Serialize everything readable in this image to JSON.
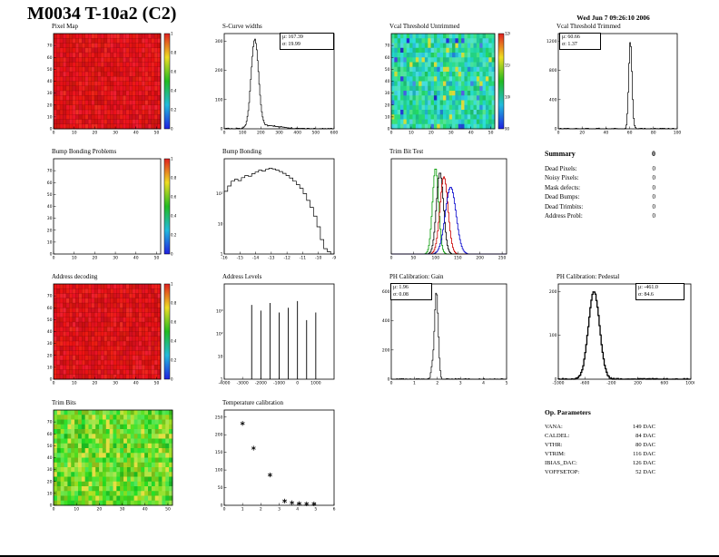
{
  "page": {
    "title": "M0034 T-10a2 (C2)",
    "datetime": "Wed Jun  7 09:26:10 2006"
  },
  "panels": {
    "pixel_map": {
      "title": "Pixel Map"
    },
    "scurve_widths": {
      "title": "S-Curve widths",
      "stats": {
        "mu": "μ: 167.39",
        "sigma": "σ: 19.99"
      }
    },
    "vcal_untrimmed": {
      "title": "Vcal Threshold Untrimmed"
    },
    "vcal_trimmed": {
      "title": "Vcal Threshold Trimmed",
      "stats": {
        "mu": "μ: 60.66",
        "sigma": "σ: 1.37"
      }
    },
    "bump_problems": {
      "title": "Bump Bonding Problems"
    },
    "bump_bonding": {
      "title": "Bump Bonding"
    },
    "trim_bit_test": {
      "title": "Trim Bit Test"
    },
    "address_decoding": {
      "title": "Address decoding"
    },
    "address_levels": {
      "title": "Address Levels"
    },
    "ph_gain": {
      "title": "PH Calibration: Gain",
      "stats": {
        "mu": "μ: 1.96",
        "sigma": "σ: 0.08"
      }
    },
    "ph_pedestal": {
      "title": "PH Calibration: Pedestal",
      "stats": {
        "mu": "μ: -461.0",
        "sigma": "σ: 84.6"
      }
    },
    "trim_bits": {
      "title": "Trim Bits"
    },
    "temperature": {
      "title": "Temperature calibration"
    }
  },
  "summary": {
    "title": "Summary",
    "total": "0",
    "rows": [
      {
        "label": "Dead Pixels:",
        "value": "0"
      },
      {
        "label": "Noisy Pixels:",
        "value": "0"
      },
      {
        "label": "Mask defects:",
        "value": "0"
      },
      {
        "label": "Dead Bumps:",
        "value": "0"
      },
      {
        "label": "Dead Trimbits:",
        "value": "0"
      },
      {
        "label": "Address Probl:",
        "value": "0"
      }
    ]
  },
  "op_parameters": {
    "title": "Op. Parameters",
    "rows": [
      {
        "label": "VANA:",
        "value": "149 DAC"
      },
      {
        "label": "CALDEL:",
        "value": "84 DAC"
      },
      {
        "label": "VTHR:",
        "value": "80 DAC"
      },
      {
        "label": "VTRIM:",
        "value": "116 DAC"
      },
      {
        "label": "IBIAS_DAC:",
        "value": "126 DAC"
      },
      {
        "label": "VOFFSETOP:",
        "value": "52 DAC"
      }
    ]
  },
  "colors": {
    "map_red": "#e32219",
    "palette_top": "#e02020",
    "palette_bottom": "#2020e0"
  },
  "chart_data": [
    {
      "id": "pixel_map",
      "type": "heatmap",
      "style": "red",
      "colorbar": true,
      "title": "Pixel Map",
      "xlim": [
        0,
        52
      ],
      "ylim": [
        0,
        80
      ],
      "xticks": [
        0,
        10,
        20,
        30,
        40,
        50
      ],
      "yticks": [
        0,
        10,
        20,
        30,
        40,
        50,
        60,
        70
      ],
      "zticks": [
        "0",
        "0.2",
        "0.4",
        "0.6",
        "0.8",
        "1"
      ],
      "uniform_value": 1
    },
    {
      "id": "scurve_widths",
      "type": "histogram",
      "title": "S-Curve widths",
      "mu": 167.39,
      "sigma": 19.99,
      "xlim": [
        0,
        600
      ],
      "xticks": [
        0,
        100,
        200,
        300,
        400,
        500,
        600
      ],
      "ycount_max": 300,
      "yticks": [
        0,
        100,
        200,
        300
      ],
      "components": [
        {
          "mu": 167.39,
          "sigma": 19.99,
          "amp": 1
        },
        {
          "mu": 240,
          "sigma": 70,
          "amp": 0.035
        }
      ]
    },
    {
      "id": "vcal_untrimmed",
      "type": "heatmap",
      "style": "teal",
      "colorbar": true,
      "title": "Vcal Threshold Untrimmed",
      "xlim": [
        0,
        52
      ],
      "ylim": [
        0,
        80
      ],
      "xticks": [
        0,
        10,
        20,
        30,
        40,
        50
      ],
      "yticks": [
        0,
        10,
        20,
        30,
        40,
        50,
        60,
        70
      ],
      "zticks": [
        "90",
        "100",
        "110",
        "120"
      ],
      "value_range": [
        90,
        130
      ]
    },
    {
      "id": "vcal_trimmed",
      "type": "histogram",
      "title": "Vcal Threshold Trimmed",
      "mu": 60.66,
      "sigma": 1.37,
      "xlim": [
        0,
        100
      ],
      "xticks": [
        0,
        20,
        40,
        60,
        80,
        100
      ],
      "ycount_max": 1200,
      "yticks": [
        0,
        400,
        800,
        1200
      ],
      "components": [
        {
          "mu": 60.66,
          "sigma": 1.37,
          "amp": 1
        }
      ]
    },
    {
      "id": "bump_problems",
      "type": "heatmap",
      "style": "white",
      "colorbar": true,
      "title": "Bump Bonding Problems",
      "xlim": [
        0,
        52
      ],
      "ylim": [
        0,
        80
      ],
      "xticks": [
        0,
        10,
        20,
        30,
        40,
        50
      ],
      "yticks": [
        0,
        10,
        20,
        30,
        40,
        50,
        60,
        70
      ],
      "zticks": [
        "0",
        "0.2",
        "0.4",
        "0.6",
        "0.8",
        "1"
      ],
      "uniform_value": 0
    },
    {
      "id": "bump_bonding",
      "type": "hist_bins",
      "title": "Bump Bonding",
      "log": true,
      "log_decades": 3,
      "xlim": [
        -16,
        -9
      ],
      "xticks": [
        -16,
        -15,
        -14,
        -13,
        -12,
        -11,
        -10,
        -9
      ],
      "log_yticks": [
        "1",
        "10",
        "10²"
      ],
      "values": [
        120,
        180,
        260,
        300,
        270,
        340,
        400,
        380,
        460,
        520,
        600,
        560,
        640,
        700,
        660,
        600,
        540,
        470,
        400,
        330,
        260,
        200,
        150,
        100,
        60,
        35,
        18,
        8,
        3,
        1.5,
        1.2,
        1
      ]
    },
    {
      "id": "trim_bit_test",
      "type": "multi_hist",
      "title": "Trim Bit Test",
      "xlim": [
        0,
        260
      ],
      "xticks": [
        0,
        50,
        100,
        150,
        200,
        250
      ],
      "series": [
        {
          "color": "#009900",
          "mu": 100,
          "sigma": 7,
          "amp": 1.0
        },
        {
          "color": "#000000",
          "mu": 110,
          "sigma": 8,
          "amp": 0.95
        },
        {
          "color": "#cc0000",
          "mu": 119,
          "sigma": 9,
          "amp": 0.9
        },
        {
          "color": "#0000cc",
          "mu": 134,
          "sigma": 12,
          "amp": 0.78
        }
      ]
    },
    {
      "id": "address_decoding",
      "type": "heatmap",
      "style": "red",
      "colorbar": true,
      "title": "Address decoding",
      "xlim": [
        0,
        52
      ],
      "ylim": [
        0,
        80
      ],
      "xticks": [
        0,
        10,
        20,
        30,
        40,
        50
      ],
      "yticks": [
        0,
        10,
        20,
        30,
        40,
        50,
        60,
        70
      ],
      "zticks": [
        "0",
        "0.2",
        "0.4",
        "0.6",
        "0.8",
        "1"
      ],
      "uniform_value": 1
    },
    {
      "id": "address_levels",
      "type": "spikes",
      "title": "Address Levels",
      "log": true,
      "log_decades": 4,
      "log_yticks": [
        "1",
        "10",
        "10²",
        "10³"
      ],
      "xlim": [
        -4000,
        2000
      ],
      "xticks": [
        -4000,
        -3000,
        -2000,
        -1000,
        0,
        1000
      ],
      "spikes": [
        {
          "x": -2500,
          "h": 0.78
        },
        {
          "x": -2000,
          "h": 0.72
        },
        {
          "x": -1500,
          "h": 0.8
        },
        {
          "x": -1000,
          "h": 0.7
        },
        {
          "x": -500,
          "h": 0.75
        },
        {
          "x": 0,
          "h": 0.82
        },
        {
          "x": 500,
          "h": 0.62
        },
        {
          "x": 1000,
          "h": 0.7
        }
      ]
    },
    {
      "id": "ph_gain",
      "type": "histogram",
      "title": "PH Calibration: Gain",
      "mu": 1.96,
      "sigma": 0.08,
      "xlim": [
        0,
        5
      ],
      "xticks": [
        0,
        1,
        2,
        3,
        4,
        5
      ],
      "ycount_max": 600,
      "yticks": [
        0,
        200,
        400,
        600
      ],
      "components": [
        {
          "mu": 1.96,
          "sigma": 0.08,
          "amp": 1
        },
        {
          "mu": 1.78,
          "sigma": 0.06,
          "amp": 0.12
        }
      ]
    },
    {
      "id": "ph_pedestal",
      "type": "histogram",
      "title": "PH Calibration: Pedestal",
      "mu": -461.0,
      "sigma": 84.6,
      "lw": 1.3,
      "xlim": [
        -1000,
        1000
      ],
      "xticks": [
        -1000,
        -600,
        -200,
        200,
        600,
        1000
      ],
      "ycount_max": 200,
      "yticks": [
        0,
        100,
        200
      ],
      "components": [
        {
          "mu": -461,
          "sigma": 84.6,
          "amp": 1
        }
      ]
    },
    {
      "id": "trim_bits",
      "type": "heatmap",
      "style": "green",
      "colorbar": false,
      "title": "Trim Bits",
      "xlim": [
        0,
        52
      ],
      "ylim": [
        0,
        80
      ],
      "xticks": [
        0,
        10,
        20,
        30,
        40,
        50
      ],
      "yticks": [
        0,
        10,
        20,
        30,
        40,
        50,
        60,
        70
      ]
    },
    {
      "id": "temperature",
      "type": "scatter",
      "title": "Temperature calibration",
      "marker": "*",
      "xlim": [
        0,
        6
      ],
      "ylim": [
        0,
        270
      ],
      "xticks": [
        0,
        1,
        2,
        3,
        4,
        5,
        6
      ],
      "yticks": [
        0,
        50,
        100,
        150,
        200,
        250
      ],
      "points": [
        [
          1.0,
          232
        ],
        [
          1.6,
          162
        ],
        [
          2.5,
          86
        ],
        [
          3.3,
          12
        ],
        [
          3.7,
          7
        ],
        [
          4.1,
          5
        ],
        [
          4.5,
          4
        ],
        [
          4.9,
          4
        ]
      ]
    }
  ]
}
